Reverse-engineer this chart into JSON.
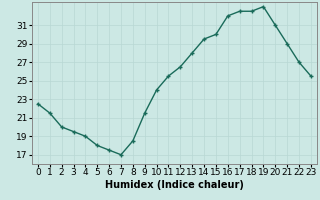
{
  "x": [
    0,
    1,
    2,
    3,
    4,
    5,
    6,
    7,
    8,
    9,
    10,
    11,
    12,
    13,
    14,
    15,
    16,
    17,
    18,
    19,
    20,
    21,
    22,
    23
  ],
  "y": [
    22.5,
    21.5,
    20.0,
    19.5,
    19.0,
    18.0,
    17.5,
    17.0,
    18.5,
    21.5,
    24.0,
    25.5,
    26.5,
    28.0,
    29.5,
    30.0,
    32.0,
    32.5,
    32.5,
    33.0,
    31.0,
    29.0,
    27.0,
    25.5
  ],
  "line_color": "#1a6b5a",
  "marker": "+",
  "bg_color": "#cce8e4",
  "grid_color": "#b8d8d4",
  "xlabel": "Humidex (Indice chaleur)",
  "xlim": [
    -0.5,
    23.5
  ],
  "ylim": [
    16,
    33.5
  ],
  "yticks": [
    17,
    19,
    21,
    23,
    25,
    27,
    29,
    31
  ],
  "xtick_labels": [
    "0",
    "1",
    "2",
    "3",
    "4",
    "5",
    "6",
    "7",
    "8",
    "9",
    "10",
    "11",
    "12",
    "13",
    "14",
    "15",
    "16",
    "17",
    "18",
    "19",
    "20",
    "21",
    "22",
    "23"
  ],
  "xlabel_fontsize": 7,
  "tick_fontsize": 6.5,
  "line_width": 1.0,
  "marker_size": 3.5,
  "spine_color": "#888888"
}
